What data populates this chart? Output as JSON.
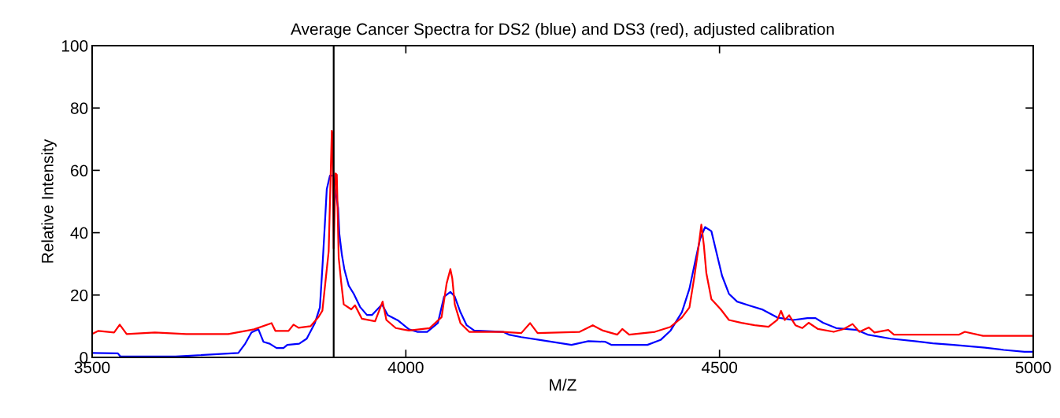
{
  "chart_data": {
    "type": "line",
    "title": "Average Cancer Spectra for DS2 (blue) and DS3 (red), adjusted calibration",
    "xlabel": "M/Z",
    "ylabel": "Relative Intensity",
    "xlim": [
      3500,
      5000
    ],
    "xticks": [
      3500,
      4000,
      4500,
      5000
    ],
    "ylim": [
      0,
      100
    ],
    "yticks": [
      0,
      20,
      40,
      60,
      80,
      100
    ],
    "grid": false,
    "legend": false,
    "marker": "none",
    "line_style": "solid",
    "ref_lines": [
      {
        "axis": "x",
        "value": 3885,
        "color": "#000000",
        "line_style": "solid"
      }
    ],
    "series": [
      {
        "color": "#0000ff",
        "x": [
          3500,
          3541,
          3545,
          3633,
          3733,
          3744,
          3754,
          3765,
          3773,
          3783,
          3794,
          3805,
          3811,
          3830,
          3842,
          3855,
          3863,
          3867,
          3871,
          3874,
          3879,
          3884,
          3892,
          3894,
          3898,
          3902,
          3909,
          3917,
          3927,
          3938,
          3946,
          3962,
          3971,
          3988,
          4005,
          4018,
          4034,
          4051,
          4061,
          4071,
          4078,
          4087,
          4097,
          4109,
          4155,
          4164,
          4184,
          4214,
          4264,
          4291,
          4318,
          4328,
          4385,
          4406,
          4422,
          4440,
          4452,
          4460,
          4469,
          4477,
          4487,
          4494,
          4504,
          4515,
          4528,
          4548,
          4569,
          4592,
          4617,
          4640,
          4653,
          4665,
          4686,
          4719,
          4736,
          4773,
          4811,
          4840,
          4873,
          4923,
          4953,
          4986,
          5000
        ],
        "values": [
          1.4,
          1.3,
          0.3,
          0.3,
          1.4,
          4.4,
          8,
          9,
          5,
          4.4,
          3,
          3,
          4,
          4.4,
          6,
          11,
          16,
          28.8,
          43,
          54,
          58.3,
          58.3,
          48,
          39.7,
          33,
          28.3,
          23,
          20.4,
          16.2,
          13.6,
          13.6,
          17,
          13.6,
          11.8,
          9,
          8.2,
          8.2,
          11,
          19.5,
          21,
          19.5,
          14.5,
          10.3,
          8.6,
          8.2,
          7.3,
          6.5,
          5.6,
          4,
          5.2,
          5,
          4,
          4,
          5.6,
          8.6,
          14.5,
          22,
          29.6,
          38,
          41.8,
          40.5,
          34.6,
          26.2,
          20.4,
          17.9,
          16.6,
          15.3,
          12.8,
          12,
          12.6,
          12.6,
          11.1,
          9.4,
          8.8,
          7.3,
          6,
          5.2,
          4.5,
          4,
          3.1,
          2.4,
          1.8,
          1.8
        ]
      },
      {
        "color": "#ff0000",
        "x": [
          3500,
          3510,
          3535,
          3544,
          3555,
          3600,
          3650,
          3717,
          3758,
          3786,
          3792,
          3813,
          3821,
          3829,
          3848,
          3861,
          3867,
          3877,
          3882,
          3883,
          3885,
          3888,
          3890,
          3893,
          3897,
          3901,
          3913,
          3919,
          3930,
          3951,
          3963,
          3969,
          3984,
          4005,
          4038,
          4057,
          4065,
          4071,
          4074,
          4078,
          4087,
          4101,
          4155,
          4184,
          4198,
          4210,
          4277,
          4298,
          4314,
          4337,
          4345,
          4356,
          4397,
          4422,
          4440,
          4452,
          4460,
          4466,
          4471,
          4475,
          4479,
          4487,
          4502,
          4515,
          4535,
          4556,
          4578,
          4592,
          4598,
          4604,
          4611,
          4621,
          4632,
          4642,
          4657,
          4682,
          4698,
          4712,
          4723,
          4738,
          4747,
          4769,
          4778,
          4882,
          4891,
          4920,
          5000
        ],
        "values": [
          7.5,
          8.5,
          8,
          10.5,
          7.5,
          8,
          7.5,
          7.5,
          9,
          11,
          8.5,
          8.5,
          10.5,
          9.5,
          10,
          13,
          15,
          34,
          72.7,
          72,
          35,
          59,
          58.6,
          32,
          24,
          17,
          15.4,
          16.7,
          12.4,
          11.6,
          17.9,
          12,
          9.4,
          8.6,
          9.4,
          12.9,
          23.7,
          28.3,
          25.4,
          17,
          11,
          8.2,
          8.2,
          7.8,
          11,
          7.8,
          8.2,
          10.3,
          8.6,
          7.3,
          9.1,
          7.3,
          8.2,
          9.8,
          12.8,
          16,
          26,
          34.6,
          42.6,
          36,
          27,
          18.7,
          15.4,
          12,
          11.1,
          10.3,
          9.8,
          12,
          14.9,
          12,
          13.5,
          10.3,
          9.4,
          11.1,
          9.1,
          8.2,
          9.1,
          10.7,
          8.2,
          9.6,
          8,
          8.8,
          7.3,
          7.3,
          8.2,
          6.9,
          6.9
        ]
      }
    ]
  }
}
